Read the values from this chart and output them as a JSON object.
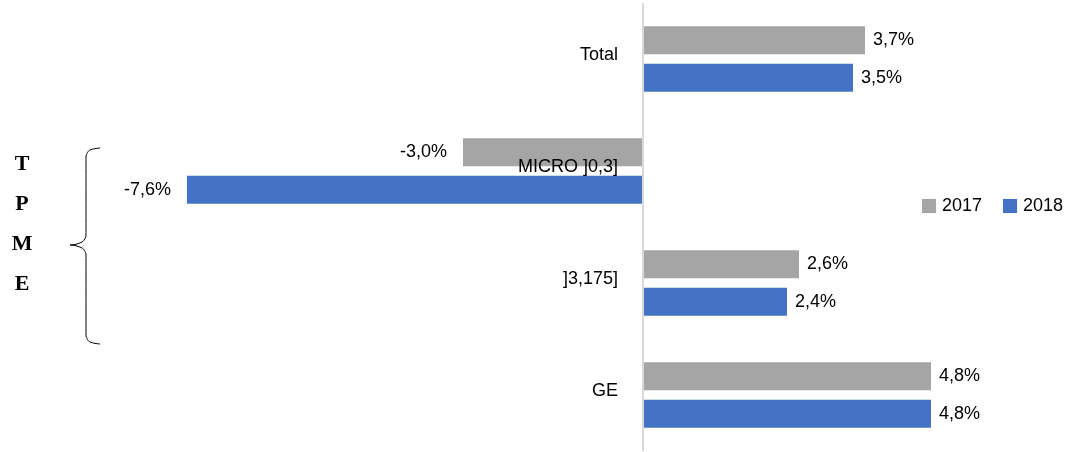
{
  "chart_data": {
    "type": "bar",
    "orientation": "horizontal",
    "categories": [
      "Total",
      "MICRO ]0,3]",
      "]3,175]",
      "GE"
    ],
    "series": [
      {
        "name": "2017",
        "color": "#a5a5a5",
        "values": [
          3.7,
          -3.0,
          2.6,
          4.8
        ],
        "value_labels": [
          "3,7%",
          "-3,0%",
          "2,6%",
          "4,8%"
        ]
      },
      {
        "name": "2018",
        "color": "#4472c4",
        "values": [
          3.5,
          -7.6,
          2.4,
          4.8
        ],
        "value_labels": [
          "3,5%",
          "-7,6%",
          "2,4%",
          "4,8%"
        ]
      }
    ],
    "legend": "right",
    "annotations": [
      "TPME"
    ]
  }
}
